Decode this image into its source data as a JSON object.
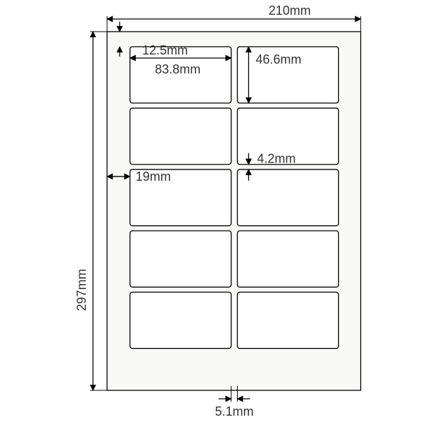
{
  "diagram": {
    "type": "technical-dimension-drawing",
    "background_color": "#ffffff",
    "line_color": "#000000",
    "text_color": "#333333",
    "font_size_pt": 14,
    "sheet": {
      "width_mm": 210,
      "height_mm": 297,
      "fill": "#f9f9f8",
      "stroke": "#000000"
    },
    "label": {
      "width_mm": 83.8,
      "height_mm": 46.6,
      "rows": 5,
      "cols": 2,
      "corner_radius_mm": 2,
      "fill": "#ffffff",
      "stroke": "#000000"
    },
    "margins": {
      "top_mm": 12.5,
      "left_mm": 19,
      "col_gap_mm": 5.1,
      "row_gap_mm": 4.2
    },
    "dim_labels": {
      "sheet_width": "210mm",
      "sheet_height": "297mm",
      "top_margin": "12.5mm",
      "left_margin": "19mm",
      "label_width": "83.8mm",
      "label_height": "46.6mm",
      "col_gap": "5.1mm",
      "row_gap": "4.2mm"
    }
  }
}
